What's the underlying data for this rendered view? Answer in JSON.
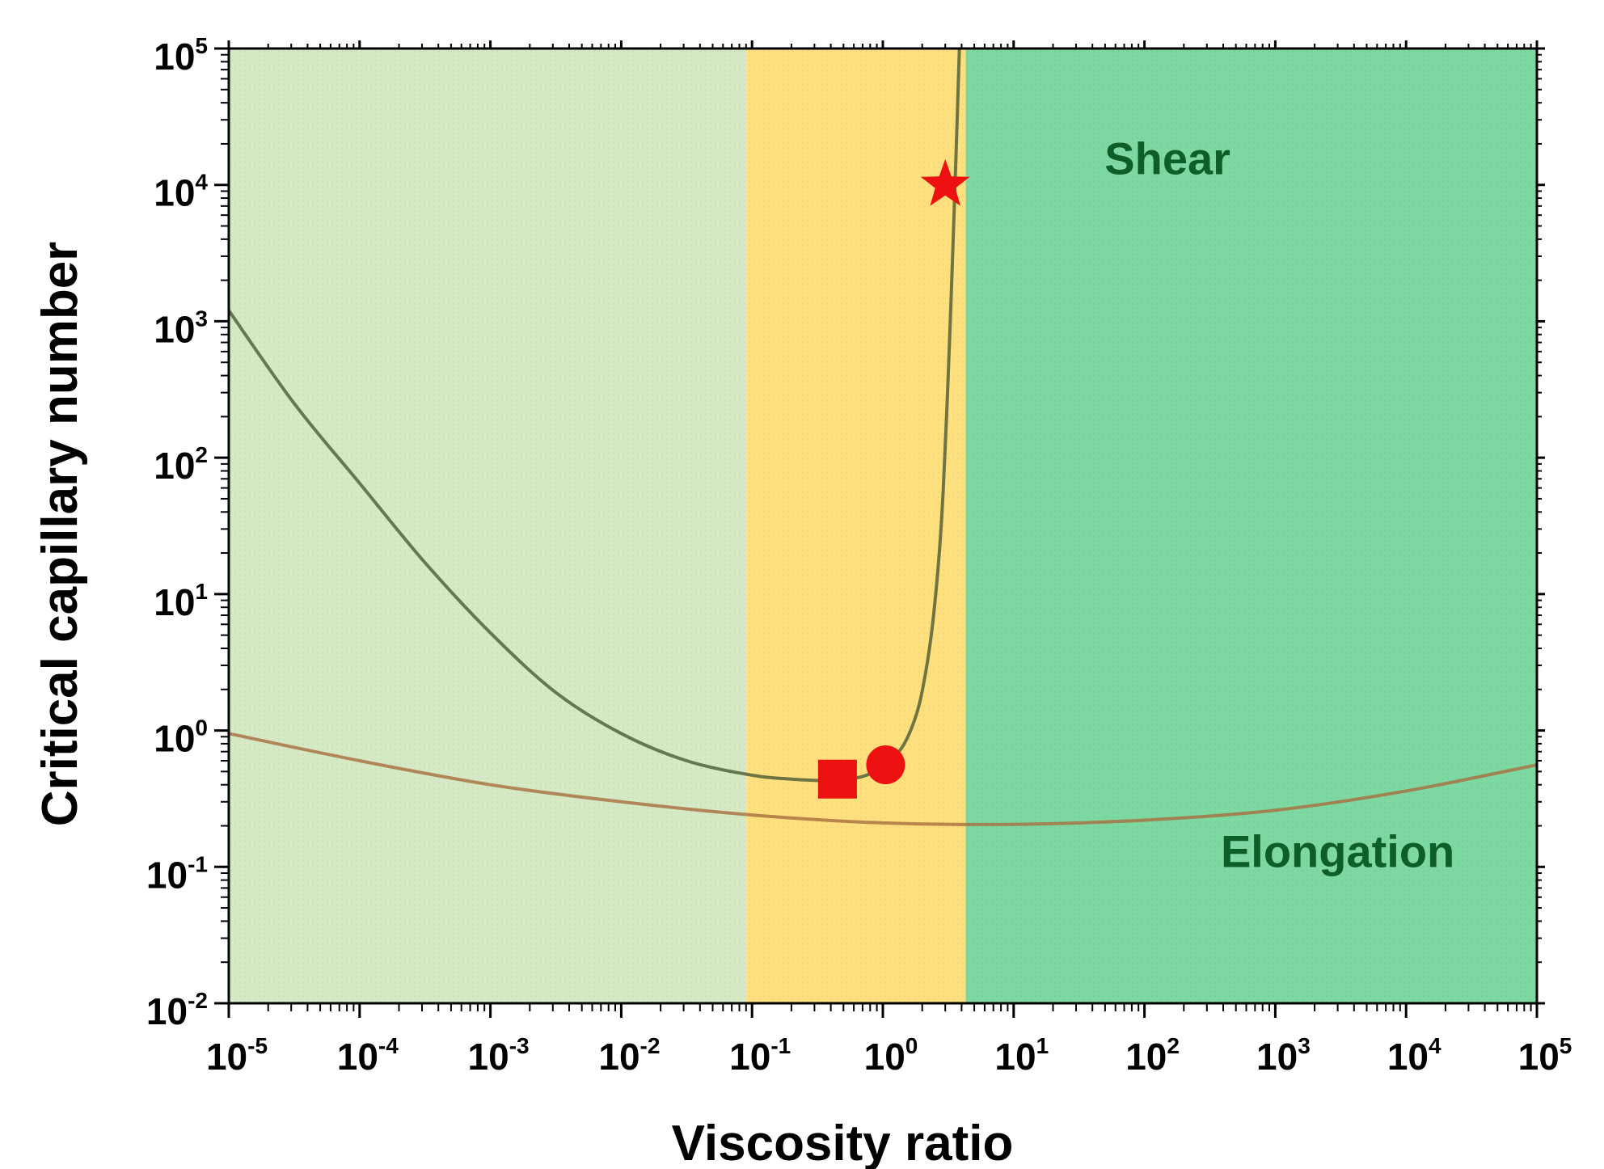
{
  "chart_data": {
    "type": "line",
    "xscale": "log",
    "yscale": "log",
    "xlabel": "Viscosity ratio",
    "ylabel": "Critical capillary number",
    "xlim": [
      1e-05,
      100000.0
    ],
    "ylim": [
      0.01,
      100000.0
    ],
    "x_ticks": [
      {
        "base": "10",
        "exp": "-5"
      },
      {
        "base": "10",
        "exp": "-4"
      },
      {
        "base": "10",
        "exp": "-3"
      },
      {
        "base": "10",
        "exp": "-2"
      },
      {
        "base": "10",
        "exp": "-1"
      },
      {
        "base": "10",
        "exp": "0"
      },
      {
        "base": "10",
        "exp": "1"
      },
      {
        "base": "10",
        "exp": "2"
      },
      {
        "base": "10",
        "exp": "3"
      },
      {
        "base": "10",
        "exp": "4"
      },
      {
        "base": "10",
        "exp": "5"
      }
    ],
    "y_ticks": [
      {
        "base": "10",
        "exp": "-2"
      },
      {
        "base": "10",
        "exp": "-1"
      },
      {
        "base": "10",
        "exp": "0"
      },
      {
        "base": "10",
        "exp": "1"
      },
      {
        "base": "10",
        "exp": "2"
      },
      {
        "base": "10",
        "exp": "3"
      },
      {
        "base": "10",
        "exp": "4"
      },
      {
        "base": "10",
        "exp": "5"
      }
    ],
    "regions": [
      {
        "name": "low-viscosity-region",
        "x_range": [
          1e-05,
          0.09
        ],
        "color": "#d4e9c4"
      },
      {
        "name": "breakup-window-region",
        "x_range": [
          0.09,
          4.3
        ],
        "color": "#ffe07e"
      },
      {
        "name": "high-viscosity-region",
        "x_range": [
          4.3,
          100000.0
        ],
        "color": "#7ed8a2"
      }
    ],
    "annotations": [
      {
        "name": "shear-label",
        "text": "Shear",
        "x": 150,
        "y": 12000,
        "color": "#0e5e28"
      },
      {
        "name": "elongation-label",
        "text": "Elongation",
        "x": 3000,
        "y": 0.1,
        "color": "#0e5e28"
      }
    ],
    "series": [
      {
        "name": "Shear",
        "color": "#4a5a34",
        "x": [
          1e-05,
          3.16e-05,
          0.0001,
          0.000316,
          0.001,
          0.00316,
          0.01,
          0.0316,
          0.1,
          0.2,
          0.4,
          0.7,
          1.0,
          1.4,
          1.8,
          2.1,
          2.4,
          2.7,
          2.9,
          3.1,
          3.3,
          3.5,
          3.7,
          3.82,
          3.85
        ],
        "y": [
          1200,
          250,
          65,
          17,
          5.2,
          1.9,
          0.95,
          0.6,
          0.47,
          0.44,
          0.43,
          0.46,
          0.55,
          0.75,
          1.3,
          2.5,
          6,
          20,
          60,
          250,
          1200,
          6000,
          30000,
          80000,
          100000
        ]
      },
      {
        "name": "Elongation",
        "color": "#a86e3e",
        "x": [
          1e-05,
          0.0001,
          0.001,
          0.01,
          0.1,
          1,
          10,
          100,
          1000,
          10000,
          100000
        ],
        "y": [
          0.95,
          0.6,
          0.4,
          0.3,
          0.24,
          0.21,
          0.205,
          0.22,
          0.26,
          0.36,
          0.56
        ]
      }
    ],
    "markers": [
      {
        "name": "square-marker",
        "shape": "square",
        "x": 0.45,
        "y": 0.44,
        "color": "#ee1111"
      },
      {
        "name": "circle-marker",
        "shape": "circle",
        "x": 1.05,
        "y": 0.56,
        "color": "#ee1111"
      },
      {
        "name": "star-marker",
        "shape": "star",
        "x": 3.0,
        "y": 10000,
        "color": "#ee1111"
      }
    ]
  }
}
